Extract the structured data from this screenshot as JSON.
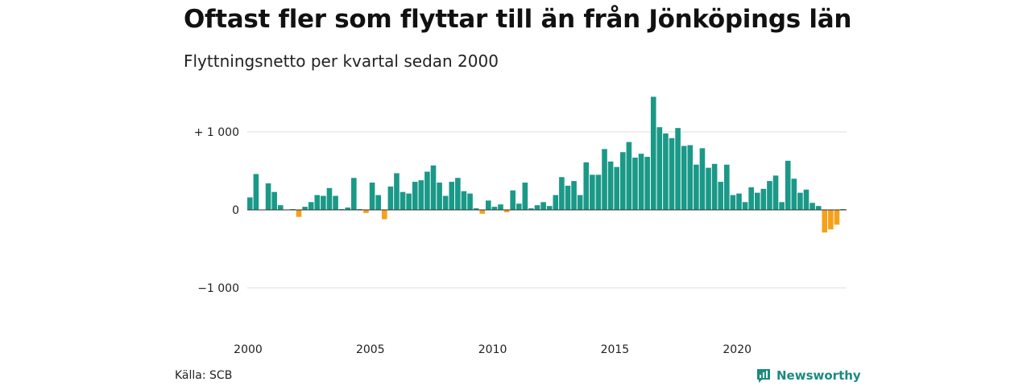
{
  "title": "Oftast fler som flyttar till än från Jönköpings län",
  "subtitle": "Flyttningsnetto per kvartal sedan 2000",
  "source": "Källa: SCB",
  "brand": {
    "name": "Newsworthy",
    "icon": "newsworthy-logo-icon"
  },
  "colors": {
    "positive": "#1a9988",
    "negative": "#f5a11c",
    "grid": "#dddddd",
    "baseline": "#333333"
  },
  "chart_data": {
    "type": "bar",
    "title": "Oftast fler som flyttar till än från Jönköpings län",
    "subtitle": "Flyttningsnetto per kvartal sedan 2000",
    "xlabel": "",
    "ylabel": "",
    "ylim": [
      -1350,
      1450
    ],
    "grid": true,
    "legend": "none",
    "y_ticks": [
      {
        "value": 1000,
        "label": "+ 1 000"
      },
      {
        "value": 0,
        "label": "0"
      },
      {
        "value": -1000,
        "label": "−1 000"
      }
    ],
    "x_ticks": [
      {
        "value": 2000,
        "label": "2000"
      },
      {
        "value": 2005,
        "label": "2005"
      },
      {
        "value": 2010,
        "label": "2010"
      },
      {
        "value": 2015,
        "label": "2015"
      },
      {
        "value": 2020,
        "label": "2020"
      }
    ],
    "categories": [
      "2000 K1",
      "2000 K2",
      "2000 K3",
      "2000 K4",
      "2001 K1",
      "2001 K2",
      "2001 K3",
      "2001 K4",
      "2002 K1",
      "2002 K2",
      "2002 K3",
      "2002 K4",
      "2003 K1",
      "2003 K2",
      "2003 K3",
      "2003 K4",
      "2004 K1",
      "2004 K2",
      "2004 K3",
      "2004 K4",
      "2005 K1",
      "2005 K2",
      "2005 K3",
      "2005 K4",
      "2006 K1",
      "2006 K2",
      "2006 K3",
      "2006 K4",
      "2007 K1",
      "2007 K2",
      "2007 K3",
      "2007 K4",
      "2008 K1",
      "2008 K2",
      "2008 K3",
      "2008 K4",
      "2009 K1",
      "2009 K2",
      "2009 K3",
      "2009 K4",
      "2010 K1",
      "2010 K2",
      "2010 K3",
      "2010 K4",
      "2011 K1",
      "2011 K2",
      "2011 K3",
      "2011 K4",
      "2012 K1",
      "2012 K2",
      "2012 K3",
      "2012 K4",
      "2013 K1",
      "2013 K2",
      "2013 K3",
      "2013 K4",
      "2014 K1",
      "2014 K2",
      "2014 K3",
      "2014 K4",
      "2015 K1",
      "2015 K2",
      "2015 K3",
      "2015 K4",
      "2016 K1",
      "2016 K2",
      "2016 K3",
      "2016 K4",
      "2017 K1",
      "2017 K2",
      "2017 K3",
      "2017 K4",
      "2018 K1",
      "2018 K2",
      "2018 K3",
      "2018 K4",
      "2019 K1",
      "2019 K2",
      "2019 K3",
      "2019 K4",
      "2020 K1",
      "2020 K2",
      "2020 K3",
      "2020 K4",
      "2021 K1",
      "2021 K2",
      "2021 K3",
      "2021 K4",
      "2022 K1",
      "2022 K2",
      "2022 K3",
      "2022 K4",
      "2023 K1",
      "2023 K2",
      "2023 K3",
      "2023 K4",
      "2024 K1",
      "2024 K2"
    ],
    "values": [
      160,
      460,
      0,
      340,
      230,
      60,
      0,
      10,
      -90,
      40,
      100,
      190,
      180,
      280,
      180,
      10,
      30,
      410,
      10,
      -40,
      350,
      190,
      -120,
      300,
      470,
      230,
      210,
      360,
      380,
      490,
      570,
      350,
      180,
      360,
      410,
      240,
      210,
      20,
      -50,
      120,
      40,
      70,
      -30,
      250,
      80,
      350,
      20,
      60,
      100,
      50,
      190,
      420,
      310,
      370,
      190,
      610,
      450,
      450,
      780,
      620,
      550,
      740,
      870,
      670,
      720,
      680,
      1450,
      1060,
      980,
      920,
      1050,
      820,
      830,
      580,
      790,
      540,
      590,
      360,
      580,
      190,
      210,
      100,
      290,
      220,
      270,
      370,
      440,
      100,
      630,
      400,
      220,
      260,
      90,
      50,
      -290,
      -250,
      -190,
      10
    ]
  }
}
